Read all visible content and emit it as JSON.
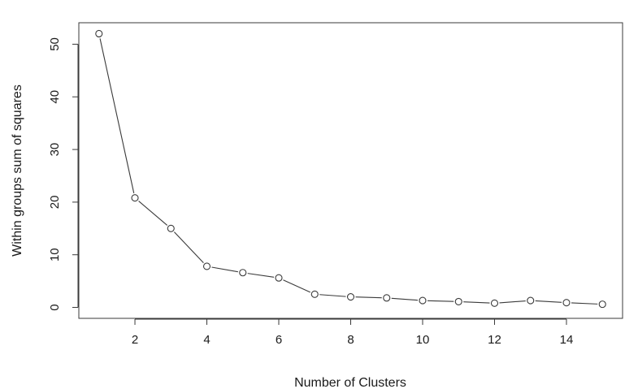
{
  "chart_data": {
    "type": "line",
    "title": "",
    "xlabel": "Number of Clusters",
    "ylabel": "Within groups sum of squares",
    "x": [
      1,
      2,
      3,
      4,
      5,
      6,
      7,
      8,
      9,
      10,
      11,
      12,
      13,
      14,
      15
    ],
    "y": [
      52.0,
      20.8,
      15.0,
      7.8,
      6.6,
      5.6,
      2.5,
      2.0,
      1.8,
      1.3,
      1.1,
      0.8,
      1.3,
      0.9,
      0.6
    ],
    "xlim": [
      0.44,
      15.56
    ],
    "ylim": [
      -2.08,
      54.08
    ],
    "xticks": [
      2,
      4,
      6,
      8,
      10,
      12,
      14
    ],
    "yticks": [
      0,
      10,
      20,
      30,
      40,
      50
    ],
    "grid": false,
    "legend": "none",
    "colors": {
      "line": "#3a3a3a",
      "marker_stroke": "#3a3a3a",
      "marker_fill": "#ffffff",
      "frame": "#3a3a3a"
    }
  }
}
